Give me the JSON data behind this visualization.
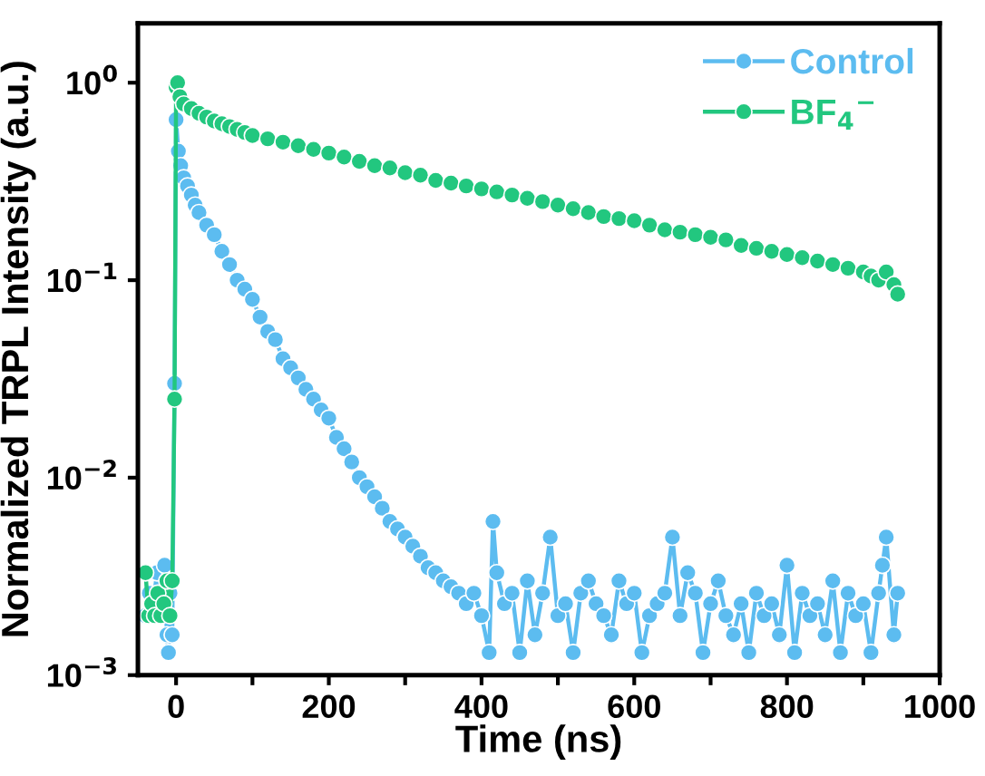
{
  "chart_data": {
    "type": "line",
    "xlabel": "Time (ns)",
    "ylabel": "Normalized TRPL Intensity (a.u.)",
    "xlim": [
      -50,
      1000
    ],
    "ylim": [
      0.001,
      2
    ],
    "log": "y",
    "xticks": [
      0,
      {
        "value": 100,
        "label": null
      },
      200,
      {
        "value": 300,
        "label": null
      },
      400,
      {
        "value": 500,
        "label": null
      },
      600,
      {
        "value": 700,
        "label": null
      },
      800,
      {
        "value": 900,
        "label": null
      },
      1000
    ],
    "yticks": [
      {
        "value": 0.001,
        "label": "10$^{−3}$"
      },
      {
        "value": 0.01,
        "label": "10$^{−2}$"
      },
      {
        "value": 0.1,
        "label": "10$^{−1}$"
      },
      {
        "value": 1,
        "label": "10$^{0}$"
      }
    ],
    "grid": false,
    "legend": "top right",
    "marker": "circle",
    "line_style": "solid",
    "series": [
      {
        "name": "Control",
        "color": "#5cbcf0",
        "x": [
          -40,
          -35,
          -30,
          -25,
          -20,
          -15,
          -12,
          -10,
          -8,
          -5,
          -2,
          0,
          3,
          6,
          10,
          15,
          20,
          25,
          30,
          40,
          50,
          60,
          70,
          80,
          90,
          100,
          110,
          120,
          130,
          140,
          150,
          160,
          170,
          180,
          190,
          200,
          210,
          220,
          230,
          240,
          250,
          260,
          270,
          280,
          290,
          300,
          310,
          320,
          330,
          340,
          350,
          360,
          370,
          380,
          390,
          400,
          410,
          415,
          420,
          430,
          440,
          450,
          460,
          470,
          480,
          490,
          500,
          510,
          520,
          530,
          540,
          550,
          560,
          570,
          580,
          590,
          600,
          610,
          620,
          630,
          640,
          650,
          660,
          670,
          680,
          690,
          700,
          710,
          720,
          730,
          740,
          750,
          760,
          770,
          780,
          790,
          800,
          810,
          820,
          830,
          840,
          850,
          860,
          870,
          880,
          890,
          900,
          910,
          920,
          925,
          930,
          940,
          945
        ],
        "values": [
          0.002,
          0.0026,
          0.0023,
          0.0033,
          0.002,
          0.0036,
          0.0016,
          0.0013,
          0.0026,
          0.0016,
          0.03,
          0.65,
          0.45,
          0.38,
          0.33,
          0.3,
          0.27,
          0.24,
          0.22,
          0.19,
          0.17,
          0.14,
          0.12,
          0.1,
          0.09,
          0.08,
          0.065,
          0.055,
          0.05,
          0.04,
          0.036,
          0.032,
          0.028,
          0.025,
          0.022,
          0.02,
          0.016,
          0.014,
          0.012,
          0.01,
          0.009,
          0.008,
          0.007,
          0.006,
          0.0055,
          0.005,
          0.0045,
          0.004,
          0.0035,
          0.0033,
          0.003,
          0.0028,
          0.0026,
          0.0023,
          0.0026,
          0.002,
          0.0013,
          0.006,
          0.0033,
          0.0023,
          0.0026,
          0.0013,
          0.003,
          0.0016,
          0.0026,
          0.005,
          0.002,
          0.0023,
          0.0013,
          0.0026,
          0.003,
          0.0023,
          0.002,
          0.0016,
          0.003,
          0.0023,
          0.0026,
          0.0013,
          0.002,
          0.0023,
          0.0026,
          0.005,
          0.002,
          0.0033,
          0.0026,
          0.0013,
          0.0023,
          0.003,
          0.002,
          0.0016,
          0.0023,
          0.0013,
          0.0026,
          0.002,
          0.0023,
          0.0016,
          0.0036,
          0.0013,
          0.0026,
          0.002,
          0.0023,
          0.0016,
          0.003,
          0.0013,
          0.0026,
          0.002,
          0.0023,
          0.0013,
          0.0026,
          0.0036,
          0.005,
          0.0016,
          0.0026
        ]
      },
      {
        "name": "BF$_{4}$$^{−}$",
        "color": "#22c77f",
        "x": [
          -40,
          -36,
          -32,
          -28,
          -24,
          -20,
          -16,
          -12,
          -8,
          -5,
          -2,
          0,
          2,
          5,
          10,
          20,
          30,
          40,
          50,
          60,
          70,
          80,
          90,
          100,
          120,
          140,
          160,
          180,
          200,
          220,
          240,
          260,
          280,
          300,
          320,
          340,
          360,
          380,
          400,
          420,
          440,
          460,
          480,
          500,
          520,
          540,
          560,
          580,
          600,
          620,
          640,
          660,
          680,
          700,
          720,
          740,
          760,
          780,
          800,
          820,
          840,
          860,
          880,
          900,
          910,
          920,
          930,
          940,
          945
        ],
        "values": [
          0.0033,
          0.002,
          0.0023,
          0.002,
          0.0026,
          0.002,
          0.0023,
          0.003,
          0.002,
          0.003,
          0.025,
          0.95,
          1.0,
          0.85,
          0.78,
          0.74,
          0.7,
          0.67,
          0.64,
          0.62,
          0.6,
          0.58,
          0.56,
          0.54,
          0.52,
          0.5,
          0.48,
          0.46,
          0.44,
          0.42,
          0.4,
          0.38,
          0.37,
          0.35,
          0.34,
          0.32,
          0.31,
          0.3,
          0.29,
          0.28,
          0.27,
          0.26,
          0.25,
          0.24,
          0.23,
          0.22,
          0.21,
          0.205,
          0.2,
          0.19,
          0.18,
          0.175,
          0.17,
          0.165,
          0.16,
          0.15,
          0.145,
          0.14,
          0.135,
          0.13,
          0.125,
          0.12,
          0.115,
          0.11,
          0.105,
          0.1,
          0.11,
          0.095,
          0.085
        ]
      }
    ]
  }
}
